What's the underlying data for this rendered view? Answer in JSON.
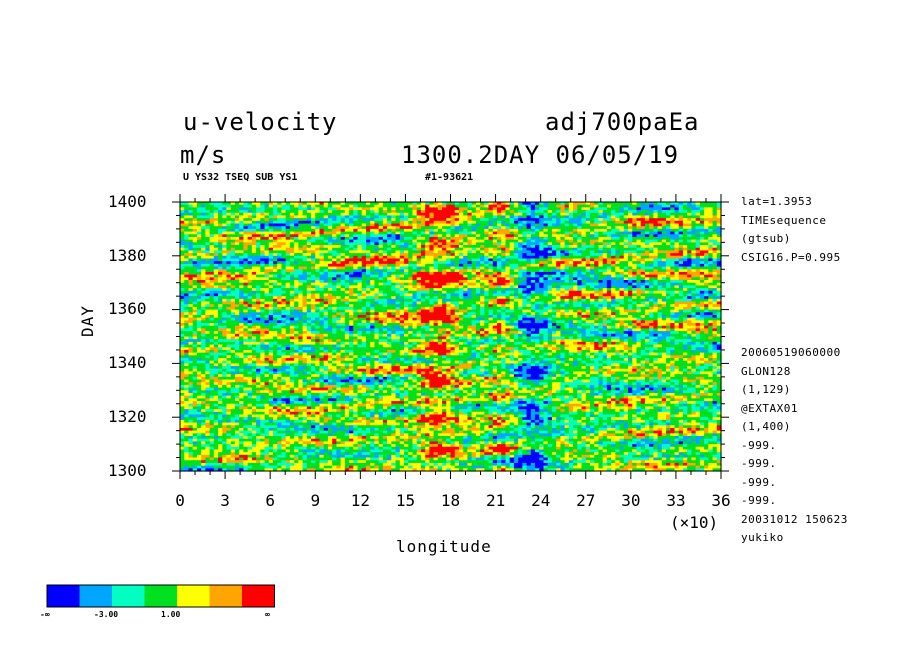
{
  "header": {
    "title_left": "u-velocity",
    "title_right": "adj700paEa",
    "units": "m/s",
    "time_label": "1300.2DAY 06/05/19",
    "sub_left": "U YS32 TSEQ SUB YS1",
    "sub_right": "#1-93621"
  },
  "side_info": {
    "top": [
      "lat=1.3953",
      "TIMEsequence",
      "(gtsub)",
      "CSIG16.P=0.995"
    ],
    "bottom": [
      "20060519060000",
      "GLON128",
      "(1,129)",
      "@EXTAX01",
      "(1,400)",
      "-999.",
      "-999.",
      "-999.",
      "-999.",
      "20031012 150623",
      "yukiko"
    ]
  },
  "legend": {
    "labels": [
      "-∞",
      "-3.00",
      "1.00",
      "∞"
    ],
    "colors": [
      "#0000ff",
      "#00a5ff",
      "#00ffc0",
      "#00e020",
      "#ffff00",
      "#ffa500",
      "#ff0000"
    ]
  },
  "chart_data": {
    "type": "heatmap",
    "xlabel": "longitude",
    "ylabel": "DAY",
    "x_multiplier": "(×10)",
    "x_ticks": [
      "0",
      "3",
      "6",
      "9",
      "12",
      "15",
      "18",
      "21",
      "24",
      "27",
      "30",
      "33",
      "36"
    ],
    "y_ticks": [
      "1300",
      "1320",
      "1340",
      "1360",
      "1380",
      "1400"
    ],
    "xlim": [
      0,
      36
    ],
    "ylim": [
      1300,
      1400
    ],
    "color_levels": [
      "-∞",
      "-3.00",
      "1.00",
      "∞"
    ],
    "colors": [
      "#0000ff",
      "#00a5ff",
      "#00ffc0",
      "#00e020",
      "#ffff00",
      "#ffa500",
      "#ff0000"
    ]
  }
}
